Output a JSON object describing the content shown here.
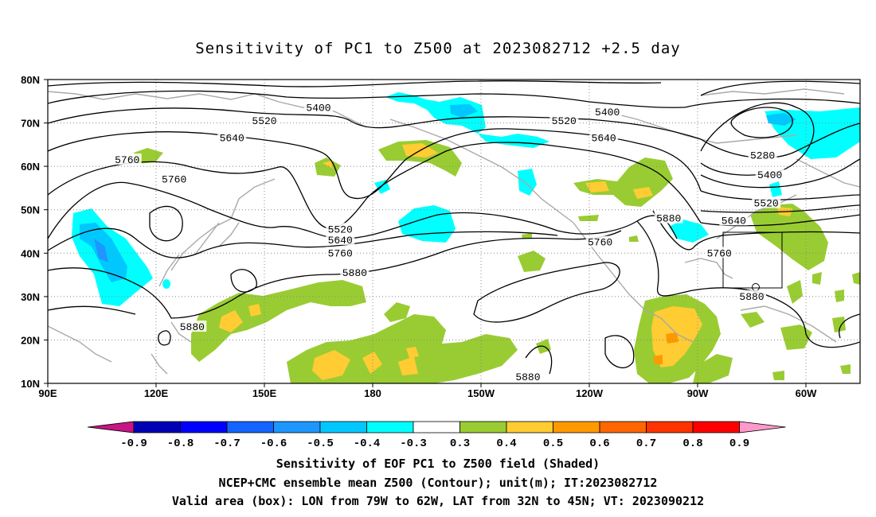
{
  "title": "Sensitivity of PC1 to Z500 at 2023082712 +2.5 day",
  "lat_ticks": [
    "80N",
    "70N",
    "60N",
    "50N",
    "40N",
    "30N",
    "20N",
    "10N"
  ],
  "lon_ticks": [
    "90E",
    "120E",
    "150E",
    "180",
    "150W",
    "120W",
    "90W",
    "60W"
  ],
  "contour_labels": [
    {
      "text": "5400",
      "lon": 165,
      "lat": 73.5
    },
    {
      "text": "5400",
      "lon": -115,
      "lat": 72.5
    },
    {
      "text": "5520",
      "lon": 150,
      "lat": 70.5
    },
    {
      "text": "5520",
      "lon": -127,
      "lat": 70.5
    },
    {
      "text": "5640",
      "lon": 141,
      "lat": 66.5
    },
    {
      "text": "5640",
      "lon": -116,
      "lat": 66.5
    },
    {
      "text": "5760",
      "lon": 112,
      "lat": 61.5
    },
    {
      "text": "5760",
      "lon": 125,
      "lat": 57
    },
    {
      "text": "5280",
      "lon": -72,
      "lat": 62.5
    },
    {
      "text": "5400",
      "lon": -70,
      "lat": 58
    },
    {
      "text": "5520",
      "lon": -71,
      "lat": 51.5
    },
    {
      "text": "5640",
      "lon": -80,
      "lat": 47.5
    },
    {
      "text": "5880",
      "lon": -98,
      "lat": 48
    },
    {
      "text": "5760",
      "lon": -117,
      "lat": 42.5
    },
    {
      "text": "5760",
      "lon": -84,
      "lat": 40
    },
    {
      "text": "5520",
      "lon": 171,
      "lat": 45.5
    },
    {
      "text": "5640",
      "lon": 171,
      "lat": 43
    },
    {
      "text": "5760",
      "lon": 171,
      "lat": 40
    },
    {
      "text": "5880",
      "lon": 175,
      "lat": 35.5
    },
    {
      "text": "5880",
      "lon": -75,
      "lat": 30
    },
    {
      "text": "5880",
      "lon": 130,
      "lat": 23
    },
    {
      "text": "5880",
      "lon": -137,
      "lat": 11.5
    }
  ],
  "valid_box": {
    "lon_from": -79,
    "lon_to": -62,
    "lat_from": 32,
    "lat_to": 45
  },
  "colorbar": {
    "labels": [
      "-0.9",
      "-0.8",
      "-0.7",
      "-0.6",
      "-0.5",
      "-0.4",
      "-0.3",
      "0.3",
      "0.4",
      "0.5",
      "0.6",
      "0.7",
      "0.8",
      "0.9"
    ],
    "colors": [
      "#c71585",
      "#0000b4",
      "#0000ff",
      "#1464ff",
      "#1e96ff",
      "#00c8ff",
      "#00ffff",
      "#ffffff",
      "#99cc33",
      "#ffcc33",
      "#ff9900",
      "#ff6600",
      "#ff3300",
      "#ff0000",
      "#ff99cc"
    ]
  },
  "caption": [
    "Sensitivity of EOF PC1 to Z500 field (Shaded)",
    "NCEP+CMC ensemble mean Z500 (Contour); unit(m); IT:2023082712",
    "Valid area (box): LON from 79W to 62W, LAT from 32N to 45N; VT: 2023090212"
  ]
}
